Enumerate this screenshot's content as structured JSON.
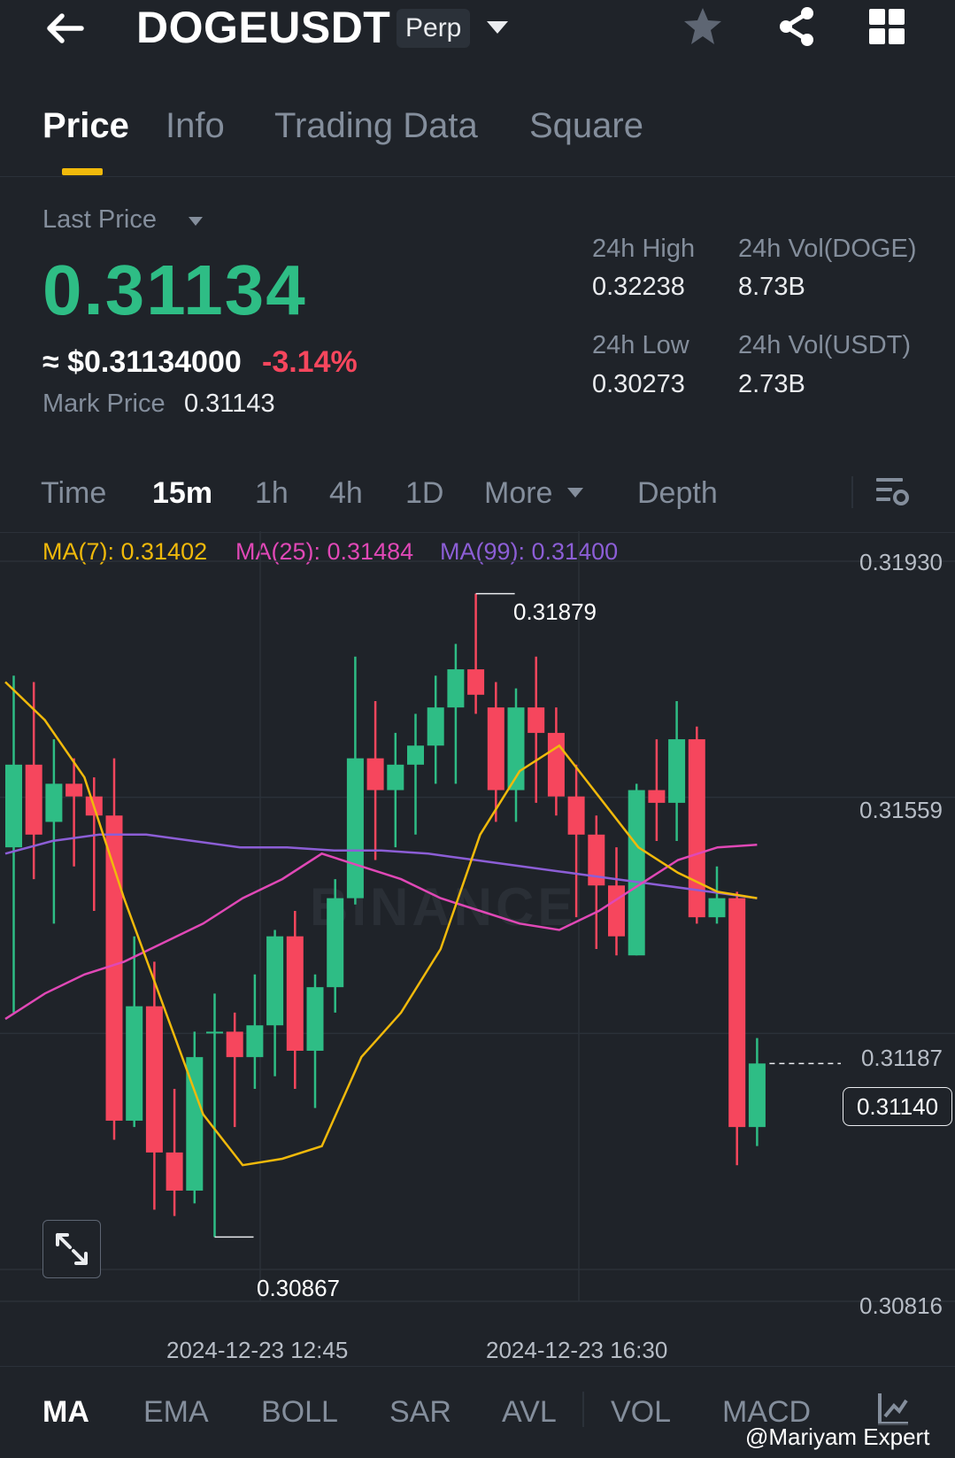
{
  "header": {
    "symbol": "DOGEUSDT",
    "badge": "Perp"
  },
  "tabs": [
    "Price",
    "Info",
    "Trading Data",
    "Square"
  ],
  "price": {
    "last_price_label": "Last Price",
    "last_price": "0.31134",
    "usd_approx": "≈ $0.31134000",
    "change_pct": "-3.14%",
    "mark_price_label": "Mark Price",
    "mark_price": "0.31143",
    "high_label": "24h High",
    "high": "0.32238",
    "low_label": "24h Low",
    "low": "0.30273",
    "vol_base_label": "24h Vol(DOGE)",
    "vol_base": "8.73B",
    "vol_quote_label": "24h Vol(USDT)",
    "vol_quote": "2.73B"
  },
  "timeframes": {
    "time": "Time",
    "m15": "15m",
    "h1": "1h",
    "h4": "4h",
    "d1": "1D",
    "more": "More",
    "depth": "Depth"
  },
  "ma_legend": {
    "ma7": "MA(7): 0.31402",
    "ma25": "MA(25): 0.31484",
    "ma99": "MA(99): 0.31400"
  },
  "chart": {
    "watermark": "BINANCE",
    "price_axis": [
      "0.31930",
      "0.31559",
      "0.31187",
      "0.30816"
    ],
    "current_price": "0.31140",
    "high_marker": "0.31879",
    "low_marker": "0.30867",
    "time_labels": [
      "2024-12-23 12:45",
      "2024-12-23 16:30"
    ]
  },
  "colors": {
    "up": "#2ebd85",
    "down": "#f6465d",
    "ma7": "#f0b90b",
    "ma25": "#e048b6",
    "ma99": "#8c5ed6",
    "background": "#1f2329",
    "accent": "#f0b90b"
  },
  "chart_data": {
    "type": "candlestick",
    "interval": "15m",
    "ylim": [
      0.30816,
      0.3193
    ],
    "candles": [
      {
        "o": 0.3148,
        "h": 0.3175,
        "l": 0.3122,
        "c": 0.3161
      },
      {
        "o": 0.3161,
        "h": 0.3174,
        "l": 0.3143,
        "c": 0.315
      },
      {
        "o": 0.3152,
        "h": 0.3165,
        "l": 0.3136,
        "c": 0.3158
      },
      {
        "o": 0.3158,
        "h": 0.3162,
        "l": 0.3145,
        "c": 0.3156
      },
      {
        "o": 0.3156,
        "h": 0.3159,
        "l": 0.3138,
        "c": 0.3153
      },
      {
        "o": 0.3153,
        "h": 0.3162,
        "l": 0.3102,
        "c": 0.3105
      },
      {
        "o": 0.3105,
        "h": 0.3134,
        "l": 0.3104,
        "c": 0.3123
      },
      {
        "o": 0.3123,
        "h": 0.313,
        "l": 0.3091,
        "c": 0.31
      },
      {
        "o": 0.31,
        "h": 0.311,
        "l": 0.309,
        "c": 0.3094
      },
      {
        "o": 0.3094,
        "h": 0.3119,
        "l": 0.3092,
        "c": 0.3115
      },
      {
        "o": 0.3119,
        "h": 0.3125,
        "l": 0.30867,
        "c": 0.3119
      },
      {
        "o": 0.3119,
        "h": 0.3122,
        "l": 0.3104,
        "c": 0.3115
      },
      {
        "o": 0.3115,
        "h": 0.3128,
        "l": 0.311,
        "c": 0.312
      },
      {
        "o": 0.312,
        "h": 0.3135,
        "l": 0.3112,
        "c": 0.3134
      },
      {
        "o": 0.3134,
        "h": 0.3138,
        "l": 0.311,
        "c": 0.3116
      },
      {
        "o": 0.3116,
        "h": 0.3128,
        "l": 0.3107,
        "c": 0.3126
      },
      {
        "o": 0.3126,
        "h": 0.3143,
        "l": 0.3122,
        "c": 0.314
      },
      {
        "o": 0.314,
        "h": 0.3178,
        "l": 0.3139,
        "c": 0.3162
      },
      {
        "o": 0.3162,
        "h": 0.3171,
        "l": 0.3146,
        "c": 0.3157
      },
      {
        "o": 0.3157,
        "h": 0.3166,
        "l": 0.3148,
        "c": 0.3161
      },
      {
        "o": 0.3161,
        "h": 0.3169,
        "l": 0.315,
        "c": 0.3164
      },
      {
        "o": 0.3164,
        "h": 0.3175,
        "l": 0.3158,
        "c": 0.317
      },
      {
        "o": 0.317,
        "h": 0.318,
        "l": 0.3158,
        "c": 0.3176
      },
      {
        "o": 0.3176,
        "h": 0.31879,
        "l": 0.3169,
        "c": 0.3172
      },
      {
        "o": 0.317,
        "h": 0.3174,
        "l": 0.3152,
        "c": 0.3157
      },
      {
        "o": 0.3157,
        "h": 0.3173,
        "l": 0.3152,
        "c": 0.317
      },
      {
        "o": 0.317,
        "h": 0.3178,
        "l": 0.3155,
        "c": 0.3166
      },
      {
        "o": 0.3166,
        "h": 0.317,
        "l": 0.3153,
        "c": 0.3156
      },
      {
        "o": 0.3156,
        "h": 0.3161,
        "l": 0.3137,
        "c": 0.315
      },
      {
        "o": 0.315,
        "h": 0.3153,
        "l": 0.3132,
        "c": 0.3142
      },
      {
        "o": 0.3142,
        "h": 0.3148,
        "l": 0.3131,
        "c": 0.3134
      },
      {
        "o": 0.3131,
        "h": 0.3158,
        "l": 0.3131,
        "c": 0.3157
      },
      {
        "o": 0.3157,
        "h": 0.3165,
        "l": 0.3149,
        "c": 0.3155
      },
      {
        "o": 0.3155,
        "h": 0.3171,
        "l": 0.3149,
        "c": 0.3165
      },
      {
        "o": 0.3165,
        "h": 0.3167,
        "l": 0.3136,
        "c": 0.3137
      },
      {
        "o": 0.3137,
        "h": 0.3145,
        "l": 0.3136,
        "c": 0.314
      },
      {
        "o": 0.314,
        "h": 0.3141,
        "l": 0.3098,
        "c": 0.3104
      },
      {
        "o": 0.3104,
        "h": 0.3118,
        "l": 0.3101,
        "c": 0.3114
      }
    ],
    "ma7": [
      0.3174,
      0.3168,
      0.3159,
      0.314,
      0.3123,
      0.3106,
      0.3098,
      0.3099,
      0.3101,
      0.3115,
      0.3122,
      0.3132,
      0.315,
      0.316,
      0.3164,
      0.3156,
      0.3148,
      0.3144,
      0.3141,
      0.314
    ],
    "ma25": [
      0.3121,
      0.3125,
      0.3128,
      0.313,
      0.3133,
      0.3136,
      0.314,
      0.3143,
      0.3147,
      0.3145,
      0.3143,
      0.314,
      0.3138,
      0.3136,
      0.3135,
      0.3138,
      0.3142,
      0.3146,
      0.3148,
      0.31484
    ],
    "ma99": [
      0.3147,
      0.3149,
      0.315,
      0.315,
      0.3149,
      0.3148,
      0.3148,
      0.31475,
      0.31475,
      0.3147,
      0.3146,
      0.3145,
      0.3144,
      0.3143,
      0.3142,
      0.3141,
      0.314
    ]
  },
  "indicators": [
    "MA",
    "EMA",
    "BOLL",
    "SAR",
    "AVL",
    "VOL",
    "MACD"
  ],
  "credit": "@Mariyam Expert"
}
